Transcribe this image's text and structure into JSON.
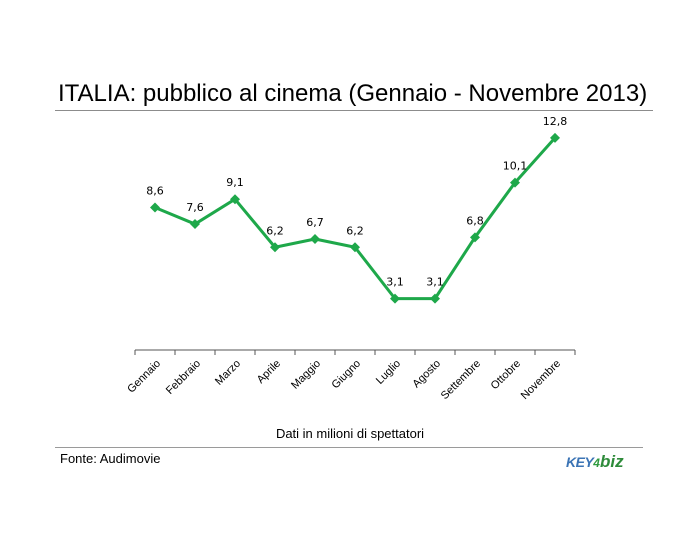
{
  "title": "ITALIA: pubblico al cinema (Gennaio - Novembre 2013)",
  "note": "Dati in milioni di spettatori",
  "source": "Fonte: Audimovie",
  "logo": {
    "key": "KEY",
    "mark": "4",
    "biz": "biz"
  },
  "colors": {
    "line": "#1ea84a",
    "axis": "#555555"
  },
  "chart_data": {
    "type": "line",
    "title": "ITALIA: pubblico al cinema (Gennaio - Novembre 2013)",
    "xlabel": "Dati in milioni di spettatori",
    "ylabel": "",
    "categories": [
      "Gennaio",
      "Febbraio",
      "Marzo",
      "Aprile",
      "Maggio",
      "Giugno",
      "Luglio",
      "Agosto",
      "Settembre",
      "Ottobre",
      "Novembre"
    ],
    "values": [
      8.6,
      7.6,
      9.1,
      6.2,
      6.7,
      6.2,
      3.1,
      3.1,
      6.8,
      10.1,
      12.8
    ],
    "labels": [
      "8,6",
      "7,6",
      "9,1",
      "6,2",
      "6,7",
      "6,2",
      "3,1",
      "3,1",
      "6,8",
      "10,1",
      "12,8"
    ],
    "ylim": [
      0,
      14
    ],
    "grid": false,
    "legend": "none",
    "marker": "diamond"
  }
}
